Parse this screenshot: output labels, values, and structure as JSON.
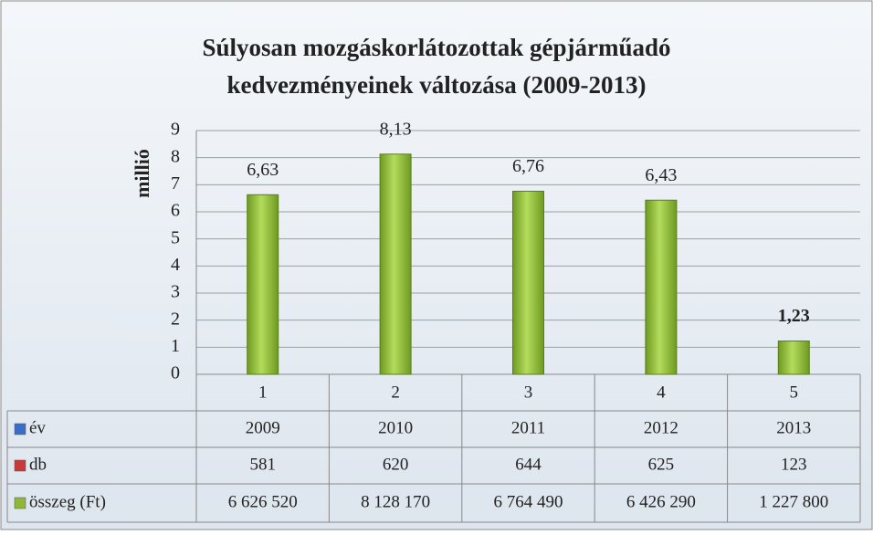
{
  "chart_data": {
    "type": "bar",
    "title": [
      "Súlyosan mozgáskorlátozottak gépjárműadó",
      "kedvezményeinek változása (2009-2013)"
    ],
    "y_label": "millió",
    "categories": [
      "1",
      "2",
      "3",
      "4",
      "5"
    ],
    "values": [
      6.63,
      8.13,
      6.76,
      6.43,
      1.23
    ],
    "value_labels": [
      "6,63",
      "8,13",
      "6,76",
      "6,43",
      "1,23"
    ],
    "color": "#8db83a",
    "ylim": [
      0,
      9
    ],
    "yticks": [
      0,
      1,
      2,
      3,
      4,
      5,
      6,
      7,
      8,
      9
    ],
    "grid": true,
    "table": [
      {
        "name": "év",
        "color": "#3a6fc8",
        "values": [
          2009,
          2010,
          2011,
          2012,
          2013
        ]
      },
      {
        "name": "db",
        "color": "#c83a3a",
        "values": [
          581,
          620,
          644,
          625,
          123
        ]
      },
      {
        "name": "összeg (Ft)",
        "color": "#8db83a",
        "values": [
          6626520,
          8128170,
          6764490,
          6426290,
          1227800
        ],
        "value_labels": [
          "6 626 520",
          "8 128 170",
          "6 764 490",
          "6 426 290",
          "1 227 800"
        ]
      }
    ]
  }
}
